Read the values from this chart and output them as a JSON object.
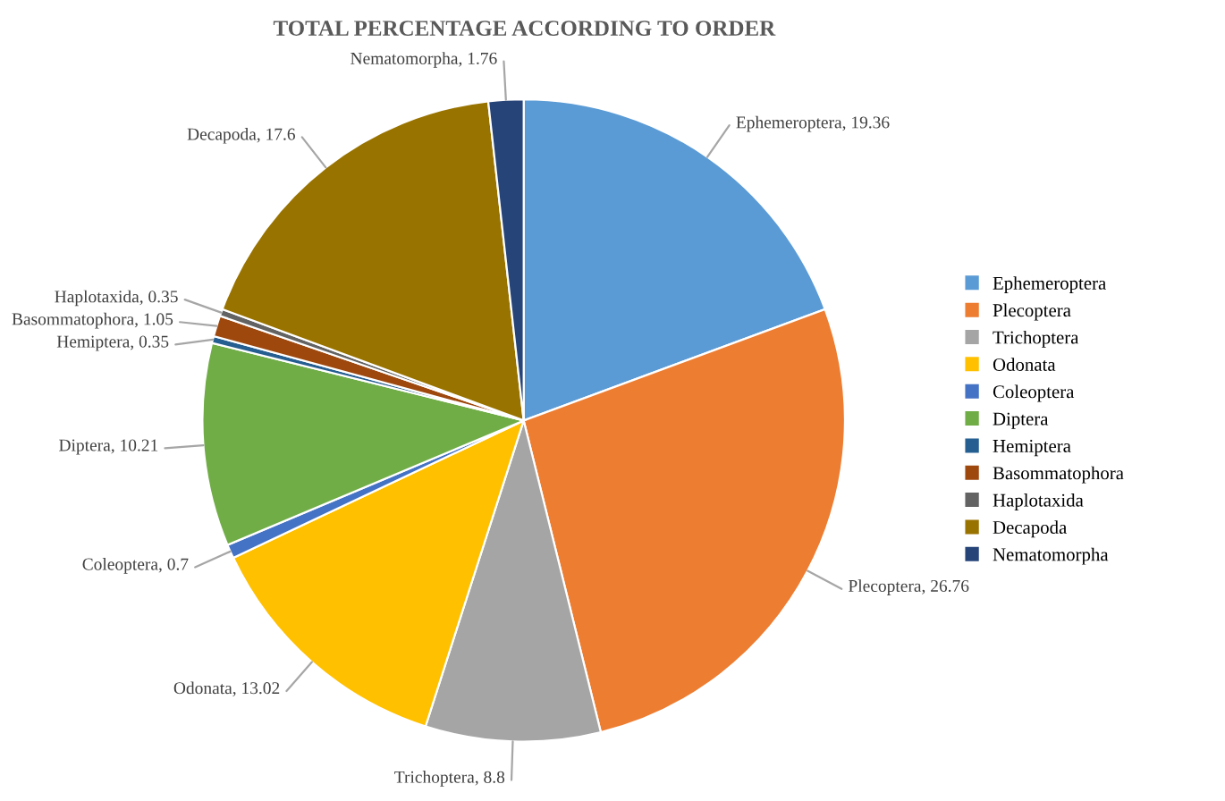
{
  "chart_data": {
    "type": "pie",
    "title": "TOTAL PERCENTAGE ACCORDING TO ORDER",
    "categories": [
      "Ephemeroptera",
      "Plecoptera",
      "Trichoptera",
      "Odonata",
      "Coleoptera",
      "Diptera",
      "Hemiptera",
      "Basommatophora",
      "Haplotaxida",
      "Decapoda",
      "Nematomorpha"
    ],
    "values": [
      19.36,
      26.76,
      8.8,
      13.02,
      0.7,
      10.21,
      0.35,
      1.05,
      0.35,
      17.6,
      1.76
    ],
    "colors": [
      "#5b9bd5",
      "#ed7d31",
      "#a5a5a5",
      "#ffc000",
      "#4472c4",
      "#70ad47",
      "#255e91",
      "#9e480e",
      "#636363",
      "#997300",
      "#264478"
    ],
    "value_labels": [
      ", 19.36",
      ", 26.76",
      ", 8.8",
      ", 13.02",
      ", 0.7",
      ", 10.21",
      ", 0.35",
      ", 1.05",
      ", 0.35",
      ", 17.6",
      ", 1.76"
    ],
    "legend": "right"
  }
}
